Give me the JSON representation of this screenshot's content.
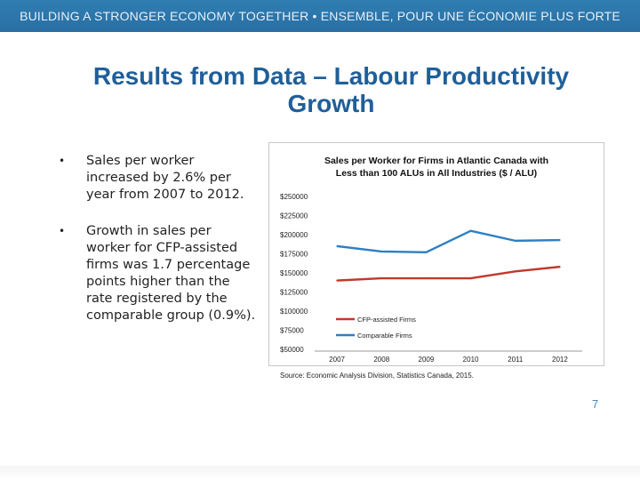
{
  "header": {
    "banner_text": "BUILDING A STRONGER ECONOMY TOGETHER • ENSEMBLE, POUR UNE ÉCONOMIE PLUS FORTE"
  },
  "slide": {
    "title": "Results from Data – Labour Productivity Growth",
    "bullet_glyph": "•",
    "bullets": [
      "Sales per worker increased by 2.6% per year from 2007 to 2012.",
      "Growth in sales per worker for CFP-assisted firms was 1.7 percentage points higher than the rate registered by the comparable group (0.9%)."
    ],
    "source": "Source: Economic Analysis Division, Statistics Canada, 2015.",
    "page_number": "7"
  },
  "colors": {
    "banner": "#2f7db2",
    "title": "#1f5f99",
    "cfp_series": "#c0392b",
    "comparable_series": "#2e7fc1"
  },
  "chart_data": {
    "type": "line",
    "title": "Sales per Worker for Firms in Atlantic Canada with Less than 100 ALUs in All Industries ($ / ALU)",
    "x": [
      "2007",
      "2008",
      "2009",
      "2010",
      "2011",
      "2012"
    ],
    "y_ticks": [
      "$250000",
      "$225000",
      "$200000",
      "$175000",
      "$150000",
      "$125000",
      "$100000",
      "$75000",
      "$50000"
    ],
    "ylim": [
      50000,
      250000
    ],
    "grid": false,
    "legend": "inside-lower-left",
    "series": [
      {
        "name": "CFP-assisted Firms",
        "color": "#c0392b",
        "values": [
          140000,
          143000,
          143000,
          143000,
          152000,
          158000
        ]
      },
      {
        "name": "Comparable Firms",
        "color": "#2e7fc1",
        "values": [
          185000,
          178000,
          177000,
          205000,
          192000,
          193000
        ]
      }
    ]
  }
}
